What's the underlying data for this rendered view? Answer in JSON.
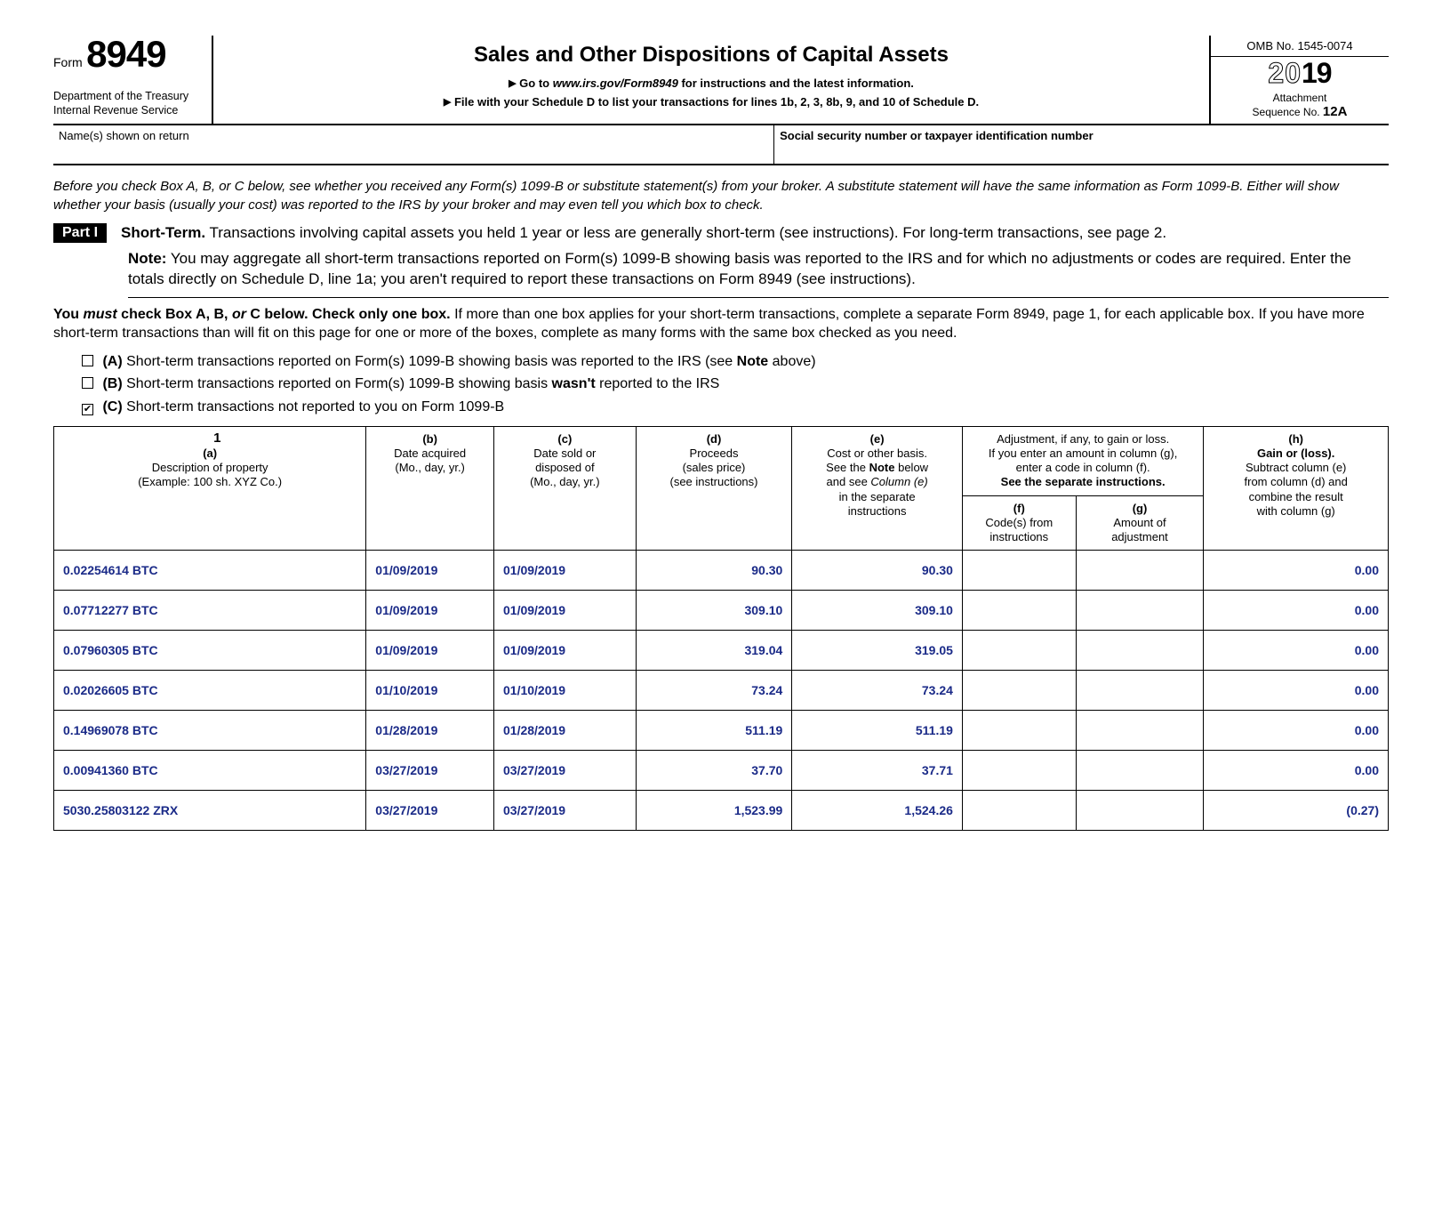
{
  "header": {
    "form_word": "Form",
    "form_number": "8949",
    "dept1": "Department of the Treasury",
    "dept2": "Internal Revenue Service",
    "title": "Sales and Other Dispositions of Capital Assets",
    "sub1_prefix": "Go to ",
    "sub1_link": "www.irs.gov/Form8949",
    "sub1_suffix": " for instructions and the latest information.",
    "sub2": "File with your Schedule D to list your transactions for lines 1b, 2, 3, 8b, 9, and 10 of Schedule D.",
    "omb": "OMB No. 1545-0074",
    "year_outline": "20",
    "year_solid": "19",
    "attach1": "Attachment",
    "attach2_prefix": "Sequence No. ",
    "attach2_val": "12A"
  },
  "name_row": {
    "left": "Name(s) shown on return",
    "right": "Social security number or taxpayer identification number"
  },
  "intro": "Before you check Box A, B, or C below, see whether you received any Form(s) 1099-B or substitute statement(s) from your broker. A substitute statement will have the same information as Form 1099-B. Either will show whether your basis (usually your cost) was reported to the IRS by your broker and may even tell you which box to check.",
  "part": {
    "badge": "Part I",
    "title_bold": "Short-Term.",
    "title_rest": " Transactions involving capital assets you held 1 year or less are generally short-term (see instructions). For long-term transactions, see page 2.",
    "note_bold": "Note:",
    "note_rest": " You may aggregate all short-term transactions reported on Form(s) 1099-B showing basis was reported to the IRS and for which no adjustments or codes are required. Enter the totals directly on Schedule D, line 1a; you aren't required to report these transactions on Form 8949 (see instructions)."
  },
  "mustcheck": {
    "lead_bold": "You ",
    "must_italic": "must",
    "rest_bold": " check Box A, B, ",
    "or_italic": "or",
    "rest_bold2": " C below. Check only one box.",
    "rest": " If more than one box applies for your short-term transactions, complete a separate Form 8949, page 1, for each applicable box. If you have more short-term transactions than will fit on this page for one or more of the boxes, complete as many forms with the same box checked as you need."
  },
  "checkboxes": {
    "a": {
      "checked": false,
      "label_bold": "(A)",
      "label_rest": " Short-term transactions reported on Form(s) 1099-B showing basis was reported to the IRS (see ",
      "note_bold": "Note",
      "tail": " above)"
    },
    "b": {
      "checked": false,
      "label_bold": "(B)",
      "label_rest_pre": " Short-term transactions reported on Form(s) 1099-B showing basis ",
      "wasnt_bold": "wasn't",
      "label_rest_post": " reported to the IRS"
    },
    "c": {
      "checked": true,
      "label_bold": "(C)",
      "label_rest": " Short-term transactions not reported to you on Form 1099-B"
    }
  },
  "table": {
    "row_number": "1",
    "cols": {
      "a": {
        "h": "(a)",
        "sub1": "Description of property",
        "sub2": "(Example: 100 sh. XYZ Co.)"
      },
      "b": {
        "h": "(b)",
        "sub1": "Date acquired",
        "sub2": "(Mo., day, yr.)"
      },
      "c": {
        "h": "(c)",
        "sub1": "Date sold or",
        "sub2": "disposed of",
        "sub3": "(Mo., day, yr.)"
      },
      "d": {
        "h": "(d)",
        "sub1": "Proceeds",
        "sub2": "(sales price)",
        "sub3": "(see instructions)"
      },
      "e": {
        "h": "(e)",
        "sub1": "Cost or other basis.",
        "sub2_pre": "See the ",
        "sub2_bold": "Note",
        "sub2_post": " below",
        "sub3_pre": "and see ",
        "sub3_it": "Column (e)",
        "sub4": "in the separate",
        "sub5": "instructions"
      },
      "adj": {
        "line1": "Adjustment, if any, to gain or loss.",
        "line2": "If you enter an amount in column (g),",
        "line3": "enter a code in column (f).",
        "line4_bold": "See the separate instructions."
      },
      "f": {
        "h": "(f)",
        "sub1": "Code(s) from",
        "sub2": "instructions"
      },
      "g": {
        "h": "(g)",
        "sub1": "Amount of",
        "sub2": "adjustment"
      },
      "h": {
        "h": "(h)",
        "sub1_bold": "Gain or (loss).",
        "sub2": "Subtract column (e)",
        "sub3": "from column (d) and",
        "sub4": "combine the result",
        "sub5": "with column (g)"
      }
    },
    "rows": [
      {
        "a": "0.02254614 BTC",
        "b": "01/09/2019",
        "c": "01/09/2019",
        "d": "90.30",
        "e": "90.30",
        "f": "",
        "g": "",
        "h": "0.00"
      },
      {
        "a": "0.07712277 BTC",
        "b": "01/09/2019",
        "c": "01/09/2019",
        "d": "309.10",
        "e": "309.10",
        "f": "",
        "g": "",
        "h": "0.00"
      },
      {
        "a": "0.07960305 BTC",
        "b": "01/09/2019",
        "c": "01/09/2019",
        "d": "319.04",
        "e": "319.05",
        "f": "",
        "g": "",
        "h": "0.00"
      },
      {
        "a": "0.02026605 BTC",
        "b": "01/10/2019",
        "c": "01/10/2019",
        "d": "73.24",
        "e": "73.24",
        "f": "",
        "g": "",
        "h": "0.00"
      },
      {
        "a": "0.14969078 BTC",
        "b": "01/28/2019",
        "c": "01/28/2019",
        "d": "511.19",
        "e": "511.19",
        "f": "",
        "g": "",
        "h": "0.00"
      },
      {
        "a": "0.00941360 BTC",
        "b": "03/27/2019",
        "c": "03/27/2019",
        "d": "37.70",
        "e": "37.71",
        "f": "",
        "g": "",
        "h": "0.00"
      },
      {
        "a": "5030.25803122 ZRX",
        "b": "03/27/2019",
        "c": "03/27/2019",
        "d": "1,523.99",
        "e": "1,524.26",
        "f": "",
        "g": "",
        "h": "(0.27)"
      }
    ]
  },
  "colors": {
    "data_blue": "#1a2a88"
  }
}
